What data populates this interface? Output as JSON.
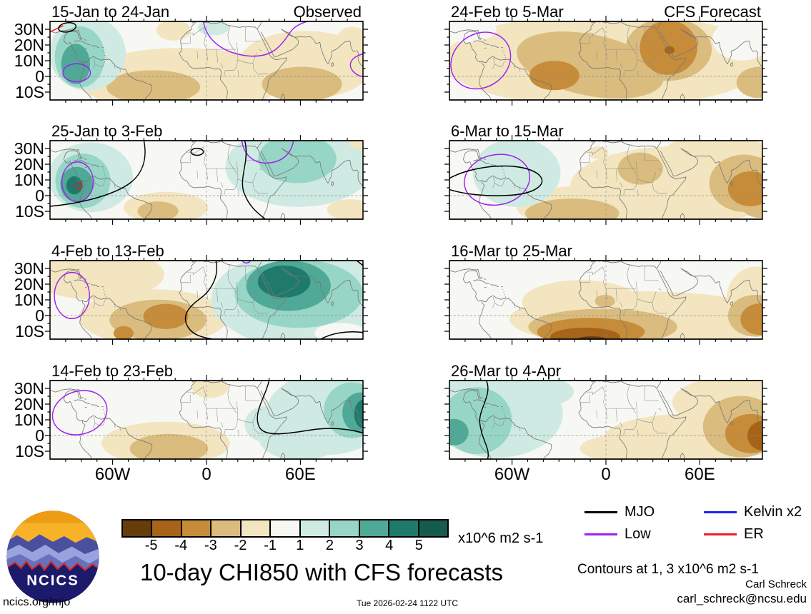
{
  "page": {
    "title": "10-day CHI850 with CFS forecasts",
    "site": "ncics.org/mjo",
    "timestamp": "Tue 2026-02-24 1122 UTC",
    "credit_name": "Carl Schreck",
    "credit_email": "carl_schreck@ncsu.edu",
    "contours_note": "Contours at 1, 3 x10^6 m2 s-1",
    "logo_text": "NCICS"
  },
  "axes": {
    "y_labels": [
      "30N",
      "20N",
      "10N",
      "0",
      "10S"
    ],
    "x_labels": [
      "60W",
      "0",
      "60E"
    ]
  },
  "colorbar": {
    "unit": "x10^6 m2 s-1",
    "tick_labels": [
      "-5",
      "-4",
      "-3",
      "-2",
      "-1",
      "1",
      "2",
      "3",
      "4",
      "5"
    ],
    "colors": [
      "#643d0a",
      "#a76418",
      "#c78c3a",
      "#d9bc7e",
      "#f2e5c0",
      "#f7f7f4",
      "#cfeae2",
      "#97d6c6",
      "#50a997",
      "#1f7a6c",
      "#175a4e"
    ]
  },
  "legend": {
    "items": [
      {
        "label": "MJO",
        "color": "#000000"
      },
      {
        "label": "Low",
        "color": "#a020f0"
      },
      {
        "label": "Kelvin x2",
        "color": "#2020ff"
      },
      {
        "label": "ER",
        "color": "#ee1c1c"
      }
    ]
  },
  "chart_data": {
    "type": "map-contour-panels",
    "title": "10-day CHI850 with CFS forecasts",
    "units": "x10^6 m2 s-1",
    "levels": [
      -5,
      -4,
      -3,
      -2,
      -1,
      1,
      2,
      3,
      4,
      5
    ],
    "contour_levels_note": "Contours at 1, 3 x10^6 m2 s-1",
    "background": "#f7f7f4",
    "x_ticks": [
      "60W",
      "0",
      "60E"
    ],
    "y_ticks": [
      "30N",
      "20N",
      "10N",
      "0",
      "10S"
    ],
    "legend_entries": [
      "MJO",
      "Low",
      "Kelvin x2",
      "ER"
    ],
    "panels": [
      {
        "title": "15-Jan to 24-Jan",
        "corner": "Observed",
        "col": 0,
        "row": 0,
        "blobs": [
          [
            420,
            168,
            330,
            92,
            0,
            "-1"
          ],
          [
            815,
            125,
            215,
            98,
            0,
            "-1"
          ],
          [
            395,
            25,
            55,
            30,
            0,
            "-1"
          ],
          [
            965,
            55,
            50,
            40,
            0,
            "-1"
          ],
          [
            330,
            188,
            150,
            48,
            0,
            "-2"
          ],
          [
            805,
            180,
            128,
            50,
            0,
            "-2"
          ],
          [
            120,
            92,
            122,
            106,
            0,
            "1"
          ],
          [
            522,
            18,
            50,
            22,
            0,
            "1"
          ],
          [
            95,
            102,
            80,
            88,
            0,
            "2"
          ],
          [
            82,
            122,
            46,
            58,
            0,
            "3"
          ]
        ],
        "contours": [
          [
            "e",
            85,
            147,
            44,
            26,
            0,
            "#a020f0"
          ],
          [
            "p",
            "M490,0 C500,55 555,92 635,99 C702,104 733,78 762,38 C775,19 792,8 822,0",
            "#a020f0"
          ],
          [
            "p",
            "M1000,93 C958,103 948,128 974,148 C982,154 991,157 1000,158",
            "#a020f0"
          ],
          [
            "p",
            "M0,30 L42,12",
            "#ee1c1c"
          ],
          [
            "e",
            55,
            17,
            28,
            13,
            -8,
            "#000000"
          ]
        ]
      },
      {
        "title": "25-Jan to 3-Feb",
        "corner": "",
        "col": 0,
        "row": 1,
        "blobs": [
          [
            130,
            105,
            135,
            100,
            0,
            "1"
          ],
          [
            795,
            75,
            235,
            115,
            0,
            "1"
          ],
          [
            1000,
            42,
            62,
            52,
            0,
            "1"
          ],
          [
            105,
            115,
            88,
            78,
            0,
            "2"
          ],
          [
            790,
            52,
            125,
            70,
            0,
            "2"
          ],
          [
            85,
            125,
            52,
            50,
            0,
            "3"
          ],
          [
            78,
            128,
            26,
            26,
            0,
            "4"
          ],
          [
            370,
            192,
            135,
            45,
            0,
            "-1"
          ],
          [
            960,
            198,
            75,
            30,
            0,
            "-1"
          ],
          [
            1000,
            8,
            45,
            18,
            0,
            "-1"
          ],
          [
            345,
            202,
            65,
            28,
            0,
            "-2"
          ]
        ],
        "contours": [
          [
            "e",
            88,
            118,
            50,
            57,
            0,
            "#a020f0"
          ],
          [
            "e",
            92,
            130,
            11,
            8,
            0,
            "#ee1c1c"
          ],
          [
            "p",
            "M613,0 C620,45 655,66 695,64 C740,62 770,40 778,0",
            "#a020f0"
          ],
          [
            "p",
            "M300,0 C312,55 295,100 245,128 C185,162 80,182 0,188",
            "#000000"
          ],
          [
            "p",
            "M622,0 C640,55 602,105 620,150 C636,188 660,205 688,225",
            "#000000"
          ],
          [
            "e",
            470,
            32,
            20,
            10,
            0,
            "#000000"
          ]
        ]
      },
      {
        "title": "4-Feb to 13-Feb",
        "corner": "",
        "col": 0,
        "row": 2,
        "blobs": [
          [
            150,
            40,
            215,
            72,
            0,
            "-1"
          ],
          [
            330,
            162,
            238,
            80,
            0,
            "-1"
          ],
          [
            345,
            170,
            155,
            58,
            0,
            "-2"
          ],
          [
            370,
            160,
            72,
            36,
            0,
            "-3"
          ],
          [
            235,
            208,
            32,
            20,
            0,
            "-3"
          ],
          [
            800,
            110,
            285,
            138,
            0,
            "1"
          ],
          [
            930,
            207,
            85,
            28,
            0,
            "0"
          ],
          [
            795,
            95,
            205,
            98,
            0,
            "2"
          ],
          [
            762,
            72,
            135,
            72,
            0,
            "3"
          ],
          [
            748,
            60,
            84,
            46,
            0,
            "4"
          ]
        ],
        "contours": [
          [
            "e",
            70,
            100,
            56,
            66,
            0,
            "#a020f0"
          ],
          [
            "p",
            "M615,0 C618,9 636,9 640,0",
            "#a020f0"
          ],
          [
            "p",
            "M530,0 C542,48 512,88 478,110 C438,136 420,162 442,192 C456,212 484,220 520,225",
            "#000000"
          ],
          [
            "p",
            "M865,225 C900,208 950,200 1000,206",
            "#000000"
          ],
          [
            "p",
            "M980,0 L1000,14",
            "#000000"
          ]
        ]
      },
      {
        "title": "14-Feb to 23-Feb",
        "corner": "",
        "col": 0,
        "row": 3,
        "blobs": [
          [
            370,
            180,
            205,
            62,
            0,
            "-1"
          ],
          [
            512,
            20,
            58,
            30,
            0,
            "-1"
          ],
          [
            380,
            195,
            125,
            42,
            0,
            "-2"
          ],
          [
            885,
            95,
            195,
            118,
            0,
            "1"
          ],
          [
            800,
            168,
            132,
            60,
            0,
            "1"
          ],
          [
            690,
            125,
            68,
            52,
            0,
            "1"
          ],
          [
            965,
            85,
            90,
            80,
            0,
            "2"
          ],
          [
            992,
            92,
            58,
            58,
            0,
            "3"
          ],
          [
            1004,
            96,
            32,
            42,
            0,
            "4"
          ]
        ],
        "contours": [
          [
            "e",
            95,
            92,
            88,
            62,
            -12,
            "#a020f0"
          ],
          [
            "p",
            "M700,0 C688,48 648,92 668,132 C684,164 760,152 830,142 C900,132 960,140 1000,150",
            "#000000"
          ]
        ]
      },
      {
        "title": "24-Feb to 5-Mar",
        "corner": "CFS Forecast",
        "col": 1,
        "row": 0,
        "blobs": [
          [
            500,
            112,
            520,
            135,
            0,
            "-1"
          ],
          [
            55,
            22,
            95,
            38,
            0,
            "0"
          ],
          [
            935,
            52,
            95,
            60,
            0,
            "0"
          ],
          [
            450,
            125,
            238,
            88,
            10,
            "-2"
          ],
          [
            700,
            80,
            138,
            90,
            0,
            "-2"
          ],
          [
            992,
            175,
            75,
            45,
            0,
            "-2"
          ],
          [
            335,
            155,
            80,
            42,
            0,
            "-3"
          ],
          [
            700,
            75,
            92,
            78,
            0,
            "-3"
          ],
          [
            703,
            82,
            16,
            11,
            0,
            "-4"
          ]
        ],
        "contours": [
          [
            "e",
            100,
            112,
            98,
            78,
            -22,
            "#a020f0"
          ]
        ]
      },
      {
        "title": "6-Mar to 15-Mar",
        "corner": "",
        "col": 1,
        "row": 1,
        "blobs": [
          [
            720,
            132,
            335,
            115,
            0,
            "-1"
          ],
          [
            852,
            40,
            168,
            62,
            0,
            "-1"
          ],
          [
            420,
            190,
            205,
            60,
            0,
            "-1"
          ],
          [
            476,
            35,
            32,
            18,
            0,
            "-1"
          ],
          [
            610,
            80,
            72,
            46,
            0,
            "-2"
          ],
          [
            942,
            122,
            112,
            82,
            0,
            "-2"
          ],
          [
            392,
            208,
            150,
            42,
            0,
            "-2"
          ],
          [
            1000,
            194,
            62,
            28,
            0,
            "-2"
          ],
          [
            962,
            138,
            72,
            50,
            0,
            "-3"
          ],
          [
            215,
            92,
            140,
            98,
            0,
            "1"
          ]
        ],
        "contours": [
          [
            "e",
            152,
            112,
            105,
            72,
            -8,
            "#a020f0"
          ],
          [
            "p",
            "M0,108 C75,70 225,58 282,95 C318,120 282,150 200,156 C118,162 40,152 0,140",
            "#000000"
          ]
        ]
      },
      {
        "title": "16-Mar to 25-Mar",
        "corner": "",
        "col": 1,
        "row": 2,
        "blobs": [
          [
            620,
            168,
            428,
            80,
            0,
            "-1"
          ],
          [
            980,
            112,
            95,
            95,
            0,
            "-1"
          ],
          [
            420,
            118,
            188,
            62,
            0,
            "-1"
          ],
          [
            490,
            190,
            238,
            52,
            0,
            "-2"
          ],
          [
            978,
            158,
            88,
            60,
            0,
            "-2"
          ],
          [
            497,
            116,
            32,
            18,
            0,
            "-2"
          ],
          [
            452,
            204,
            172,
            40,
            0,
            "-3"
          ],
          [
            992,
            168,
            62,
            45,
            0,
            "-3"
          ],
          [
            434,
            218,
            112,
            26,
            0,
            "-4"
          ],
          [
            455,
            226,
            46,
            9,
            0,
            "-5"
          ]
        ],
        "contours": []
      },
      {
        "title": "26-Mar to 4-Apr",
        "corner": "",
        "col": 1,
        "row": 3,
        "blobs": [
          [
            150,
            95,
            212,
            126,
            0,
            "1"
          ],
          [
            232,
            32,
            165,
            52,
            0,
            "1"
          ],
          [
            88,
            115,
            112,
            96,
            0,
            "2"
          ],
          [
            15,
            148,
            46,
            38,
            0,
            "3"
          ],
          [
            782,
            164,
            288,
            70,
            0,
            "-1"
          ],
          [
            900,
            62,
            188,
            72,
            0,
            "-1"
          ],
          [
            622,
            194,
            205,
            46,
            0,
            "-1"
          ],
          [
            932,
            132,
            122,
            88,
            0,
            "-2"
          ],
          [
            963,
            152,
            82,
            56,
            0,
            "-3"
          ],
          [
            1000,
            158,
            48,
            42,
            0,
            "-4"
          ]
        ],
        "contours": [
          [
            "p",
            "M118,0 C138,42 92,82 97,122 C102,168 132,196 122,225",
            "#000000"
          ]
        ]
      }
    ]
  }
}
